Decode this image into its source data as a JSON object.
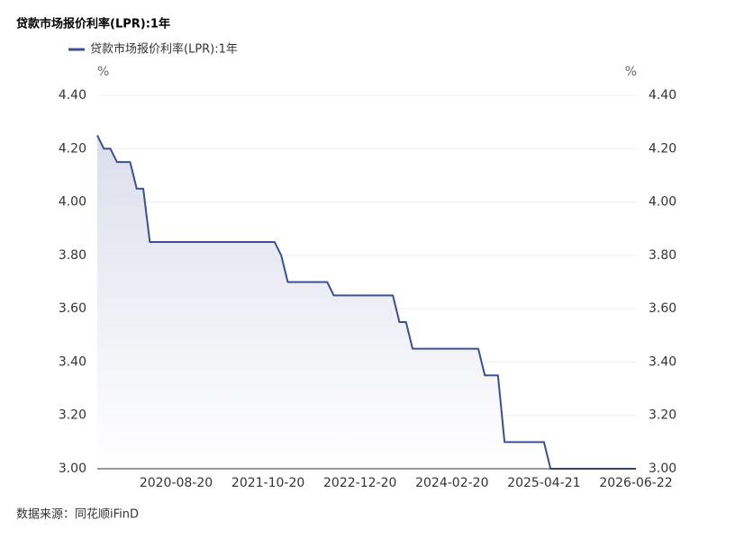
{
  "chart_data": {
    "type": "line",
    "title": "贷款市场报价利率(LPR):1年",
    "source": "数据来源：同花顺iFinD",
    "y_unit": "%",
    "y2_unit": "%",
    "categories": [
      null,
      null,
      null,
      null,
      null,
      null,
      null,
      null,
      null,
      null,
      null,
      null,
      "2020-08-20",
      null,
      null,
      null,
      null,
      null,
      null,
      null,
      null,
      null,
      null,
      null,
      null,
      null,
      "2021-10-20",
      null,
      null,
      null,
      null,
      null,
      null,
      null,
      null,
      null,
      null,
      null,
      null,
      null,
      "2022-12-20",
      null,
      null,
      null,
      null,
      null,
      null,
      null,
      null,
      null,
      null,
      null,
      null,
      null,
      "2024-02-20",
      null,
      null,
      null,
      null,
      null,
      null,
      null,
      null,
      null,
      null,
      null,
      null,
      null,
      "2025-04-21",
      null,
      null,
      null,
      null,
      null,
      null,
      null,
      null,
      null,
      null,
      null,
      null,
      null,
      "2026-06-22"
    ],
    "series": [
      {
        "name": "贷款市场报价利率(LPR):1年",
        "color": "#3d4f94",
        "values": [
          4.25,
          4.2,
          4.2,
          4.15,
          4.15,
          4.15,
          4.05,
          4.05,
          3.85,
          3.85,
          3.85,
          3.85,
          3.85,
          3.85,
          3.85,
          3.85,
          3.85,
          3.85,
          3.85,
          3.85,
          3.85,
          3.85,
          3.85,
          3.85,
          3.85,
          3.85,
          3.85,
          3.85,
          3.8,
          3.7,
          3.7,
          3.7,
          3.7,
          3.7,
          3.7,
          3.7,
          3.65,
          3.65,
          3.65,
          3.65,
          3.65,
          3.65,
          3.65,
          3.65,
          3.65,
          3.65,
          3.55,
          3.55,
          3.45,
          3.45,
          3.45,
          3.45,
          3.45,
          3.45,
          3.45,
          3.45,
          3.45,
          3.45,
          3.45,
          3.35,
          3.35,
          3.35,
          3.1,
          3.1,
          3.1,
          3.1,
          3.1,
          3.1,
          3.1,
          3,
          3,
          3,
          3,
          3,
          3,
          3,
          3,
          3,
          3,
          3,
          3,
          3,
          3
        ]
      }
    ],
    "ylim": [
      3.0,
      4.4
    ],
    "yticks": [
      {
        "value": 3.0,
        "label": "3.00"
      },
      {
        "value": 3.2,
        "label": "3.20"
      },
      {
        "value": 3.4,
        "label": "3.40"
      },
      {
        "value": 3.6,
        "label": "3.60"
      },
      {
        "value": 3.8,
        "label": "3.80"
      },
      {
        "value": 4.0,
        "label": "4.00"
      },
      {
        "value": 4.2,
        "label": "4.20"
      },
      {
        "value": 4.4,
        "label": "4.40"
      }
    ],
    "y2lim": [
      3.0,
      4.4
    ],
    "y2ticks": [
      {
        "value": 3.0,
        "label": "3.00"
      },
      {
        "value": 3.2,
        "label": "3.20"
      },
      {
        "value": 3.4,
        "label": "3.40"
      },
      {
        "value": 3.6,
        "label": "3.60"
      },
      {
        "value": 3.8,
        "label": "3.80"
      },
      {
        "value": 4.0,
        "label": "4.00"
      },
      {
        "value": 4.2,
        "label": "4.20"
      },
      {
        "value": 4.4,
        "label": "4.40"
      }
    ],
    "grid": true,
    "area_fill": true
  }
}
